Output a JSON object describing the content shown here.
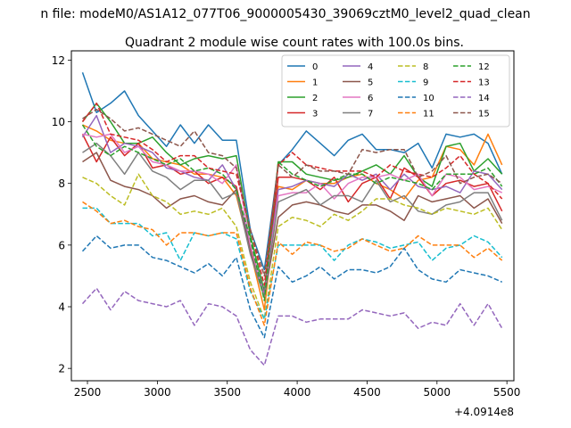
{
  "chart_data": {
    "type": "line",
    "suptitle": "n file: modeM0/AS1A12_077T06_9000005430_39069cztM0_level2_quad_clean",
    "title": "Quadrant 2 module wise count rates with 100.0s bins.",
    "xlabel": "",
    "ylabel": "",
    "x_offset_label": "+4.0914e8",
    "xlim": [
      2385,
      5550
    ],
    "ylim": [
      1.6,
      12.3
    ],
    "x_ticks": [
      2500,
      3000,
      3500,
      4000,
      4500,
      5000,
      5500
    ],
    "y_ticks": [
      2,
      4,
      6,
      8,
      10,
      12
    ],
    "grid": false,
    "legend_position": "top-right",
    "x": [
      2465,
      2565,
      2665,
      2765,
      2865,
      2965,
      3065,
      3165,
      3265,
      3365,
      3465,
      3565,
      3665,
      3765,
      3865,
      3965,
      4065,
      4165,
      4265,
      4365,
      4465,
      4565,
      4665,
      4765,
      4865,
      4965,
      5065,
      5165,
      5265,
      5365,
      5465
    ],
    "series": [
      {
        "name": "0",
        "color": "#1f77b4",
        "dash": "solid",
        "values": [
          11.6,
          10.3,
          10.6,
          11.0,
          10.2,
          9.7,
          9.2,
          9.9,
          9.3,
          9.9,
          9.4,
          9.4,
          6.5,
          5.2,
          8.6,
          9.1,
          9.7,
          9.3,
          8.9,
          9.4,
          9.6,
          9.1,
          9.1,
          9.0,
          9.3,
          8.5,
          9.6,
          9.5,
          9.6,
          9.3,
          8.3
        ]
      },
      {
        "name": "1",
        "color": "#ff7f0e",
        "dash": "solid",
        "values": [
          9.9,
          9.7,
          9.4,
          9.3,
          9.3,
          8.8,
          8.7,
          8.6,
          8.3,
          8.3,
          8.2,
          7.6,
          5.8,
          3.9,
          7.9,
          7.8,
          8.1,
          8.0,
          8.0,
          8.2,
          8.3,
          8.0,
          7.8,
          7.5,
          8.1,
          8.2,
          9.2,
          9.1,
          8.6,
          9.6,
          8.6
        ]
      },
      {
        "name": "2",
        "color": "#2ca02c",
        "dash": "solid",
        "values": [
          10.0,
          10.6,
          10.0,
          9.3,
          9.3,
          9.5,
          9.0,
          8.6,
          8.8,
          8.9,
          8.8,
          8.9,
          6.3,
          4.5,
          8.7,
          8.7,
          8.3,
          8.2,
          8.1,
          8.2,
          8.4,
          8.6,
          8.3,
          8.9,
          8.2,
          7.9,
          9.2,
          9.3,
          8.4,
          8.8,
          8.3
        ]
      },
      {
        "name": "3",
        "color": "#d62728",
        "dash": "solid",
        "values": [
          9.6,
          8.7,
          9.5,
          8.9,
          9.3,
          8.5,
          8.6,
          8.3,
          8.4,
          8.0,
          8.2,
          7.9,
          5.9,
          4.4,
          8.2,
          8.2,
          8.1,
          7.8,
          8.2,
          7.4,
          8.0,
          8.2,
          7.5,
          8.5,
          8.2,
          7.6,
          8.0,
          8.1,
          7.9,
          8.0,
          7.1
        ]
      },
      {
        "name": "4",
        "color": "#9467bd",
        "dash": "solid",
        "values": [
          9.5,
          10.2,
          9.0,
          9.3,
          9.2,
          9.0,
          8.5,
          8.4,
          8.2,
          8.1,
          8.6,
          7.8,
          6.0,
          4.4,
          7.8,
          7.9,
          8.1,
          8.0,
          7.9,
          8.3,
          8.1,
          8.3,
          7.8,
          8.3,
          7.9,
          7.8,
          7.9,
          7.7,
          8.4,
          8.3,
          7.8
        ]
      },
      {
        "name": "5",
        "color": "#8c564b",
        "dash": "solid",
        "values": [
          8.7,
          9.0,
          8.1,
          7.9,
          7.8,
          7.6,
          7.2,
          7.5,
          7.6,
          7.4,
          7.3,
          7.8,
          5.8,
          4.3,
          6.9,
          7.3,
          7.4,
          7.3,
          7.1,
          7.0,
          7.3,
          7.3,
          7.1,
          6.8,
          7.6,
          7.4,
          7.5,
          7.6,
          7.2,
          7.5,
          6.7
        ]
      },
      {
        "name": "6",
        "color": "#e377c2",
        "dash": "solid",
        "values": [
          9.6,
          9.5,
          9.6,
          9.0,
          9.2,
          8.7,
          8.6,
          8.4,
          8.4,
          8.3,
          8.0,
          8.6,
          6.0,
          4.3,
          7.6,
          7.7,
          7.7,
          8.0,
          7.5,
          8.0,
          8.2,
          8.2,
          8.3,
          8.1,
          8.3,
          7.6,
          8.3,
          8.2,
          7.8,
          7.9,
          7.7
        ]
      },
      {
        "name": "7",
        "color": "#7f7f7f",
        "dash": "solid",
        "values": [
          9.0,
          9.3,
          8.9,
          8.3,
          9.0,
          8.4,
          8.2,
          7.8,
          8.1,
          8.1,
          7.5,
          7.7,
          5.7,
          4.3,
          7.4,
          7.6,
          7.8,
          7.3,
          7.6,
          7.6,
          7.4,
          8.1,
          7.4,
          7.6,
          7.1,
          7.0,
          7.3,
          7.4,
          7.7,
          7.7,
          6.8
        ]
      },
      {
        "name": "8",
        "color": "#bcbd22",
        "dash": "dashed",
        "values": [
          8.2,
          8.0,
          7.6,
          7.3,
          8.3,
          7.6,
          7.4,
          7.0,
          7.1,
          7.0,
          7.2,
          6.6,
          4.8,
          3.6,
          6.6,
          6.9,
          6.8,
          6.6,
          7.0,
          6.8,
          7.1,
          7.5,
          7.5,
          7.3,
          7.2,
          7.0,
          7.2,
          7.1,
          7.0,
          7.2,
          6.5
        ]
      },
      {
        "name": "9",
        "color": "#17becf",
        "dash": "dashed",
        "values": [
          7.2,
          7.2,
          6.7,
          6.7,
          6.7,
          6.3,
          6.4,
          5.5,
          6.4,
          6.3,
          6.4,
          6.2,
          4.5,
          3.6,
          6.0,
          6.0,
          6.0,
          6.0,
          5.5,
          6.0,
          6.2,
          6.1,
          5.9,
          6.0,
          6.1,
          5.5,
          5.9,
          6.0,
          6.3,
          6.1,
          5.6
        ]
      },
      {
        "name": "10",
        "color": "#1f77b4",
        "dash": "dashed",
        "values": [
          5.8,
          6.3,
          5.9,
          6.0,
          6.0,
          5.6,
          5.5,
          5.3,
          5.1,
          5.4,
          5.0,
          5.6,
          3.9,
          3.0,
          5.3,
          4.8,
          5.0,
          5.3,
          4.9,
          5.2,
          5.2,
          5.1,
          5.3,
          5.9,
          5.2,
          4.9,
          4.8,
          5.2,
          5.1,
          5.0,
          4.8
        ]
      },
      {
        "name": "11",
        "color": "#ff7f0e",
        "dash": "dashed",
        "values": [
          7.4,
          7.1,
          6.7,
          6.8,
          6.6,
          6.5,
          6.0,
          6.4,
          6.4,
          6.3,
          6.4,
          6.4,
          4.6,
          3.4,
          6.1,
          5.7,
          6.1,
          6.0,
          5.8,
          5.9,
          6.2,
          6.0,
          5.8,
          5.9,
          6.3,
          6.0,
          6.0,
          6.0,
          5.6,
          5.9,
          5.5
        ]
      },
      {
        "name": "12",
        "color": "#2ca02c",
        "dash": "dashed",
        "values": [
          9.9,
          9.2,
          8.9,
          9.2,
          9.0,
          8.8,
          8.6,
          8.8,
          8.4,
          8.5,
          8.3,
          7.8,
          6.2,
          4.2,
          8.7,
          8.3,
          8.1,
          7.9,
          8.1,
          8.3,
          8.3,
          8.0,
          8.2,
          8.1,
          8.0,
          7.8,
          8.3,
          8.3,
          8.3,
          8.5,
          7.9
        ]
      },
      {
        "name": "13",
        "color": "#d62728",
        "dash": "dashed",
        "values": [
          10.0,
          10.6,
          9.6,
          9.5,
          9.4,
          9.1,
          8.7,
          8.9,
          8.9,
          8.5,
          8.4,
          8.3,
          6.5,
          4.7,
          8.6,
          9.0,
          8.6,
          8.5,
          8.4,
          8.4,
          8.4,
          8.2,
          8.6,
          8.4,
          8.3,
          8.2,
          8.5,
          8.9,
          8.3,
          8.0,
          7.5
        ]
      },
      {
        "name": "14",
        "color": "#9467bd",
        "dash": "dashed",
        "values": [
          4.1,
          4.6,
          3.9,
          4.5,
          4.2,
          4.1,
          4.0,
          4.2,
          3.4,
          4.1,
          4.0,
          3.7,
          2.6,
          2.1,
          3.7,
          3.7,
          3.5,
          3.6,
          3.6,
          3.6,
          3.9,
          3.8,
          3.7,
          3.8,
          3.3,
          3.5,
          3.4,
          4.1,
          3.4,
          4.1,
          3.3
        ]
      },
      {
        "name": "15",
        "color": "#8c564b",
        "dash": "dashed",
        "values": [
          10.1,
          10.4,
          10.1,
          9.7,
          9.8,
          9.6,
          9.4,
          9.2,
          9.7,
          9.0,
          8.9,
          8.5,
          6.5,
          5.0,
          8.6,
          8.2,
          8.6,
          8.4,
          8.4,
          8.3,
          9.1,
          9.0,
          9.1,
          9.1,
          8.2,
          8.4,
          8.9,
          8.0,
          8.2,
          8.3,
          8.0
        ]
      }
    ]
  }
}
